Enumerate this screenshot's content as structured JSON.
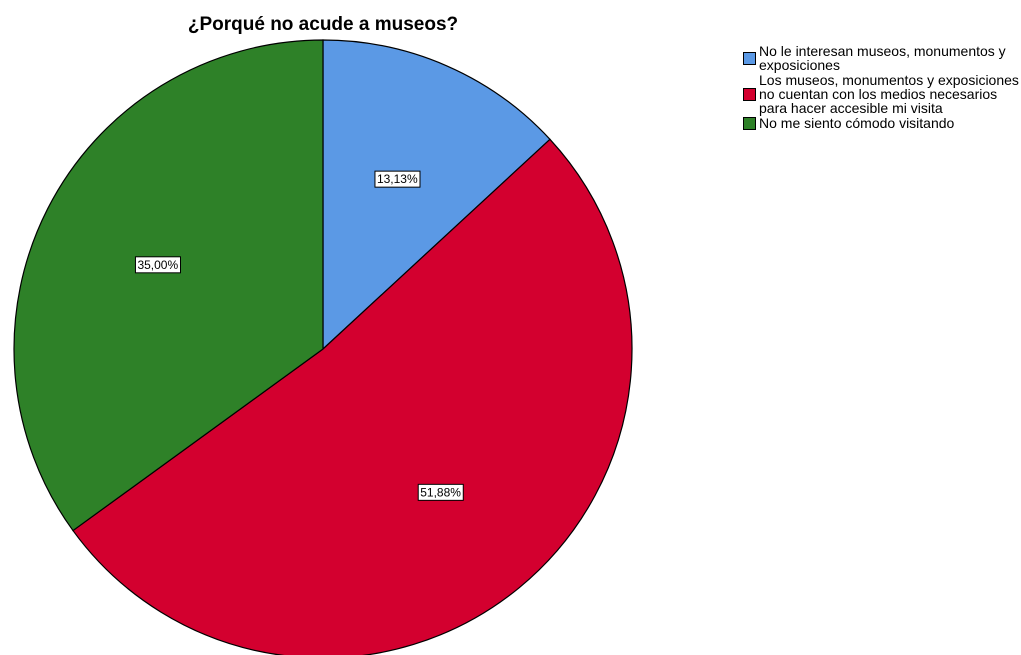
{
  "chart_data": {
    "type": "pie",
    "title": "¿Porqué no acude a museos?",
    "legend_position": "top-right",
    "slices": [
      {
        "name": "No le interesan museos, monumentos y exposiciones",
        "value": 13.13,
        "label": "13,13%",
        "color": "#5b99e5"
      },
      {
        "name": "Los museos, monumentos y exposiciones no cuentan con los medios necesarios para hacer accesible mi visita",
        "value": 51.88,
        "label": "51,88%",
        "color": "#d3002f"
      },
      {
        "name": "No me siento cómodo visitando",
        "value": 35.0,
        "label": "35,00%",
        "color": "#2e8128"
      }
    ]
  }
}
